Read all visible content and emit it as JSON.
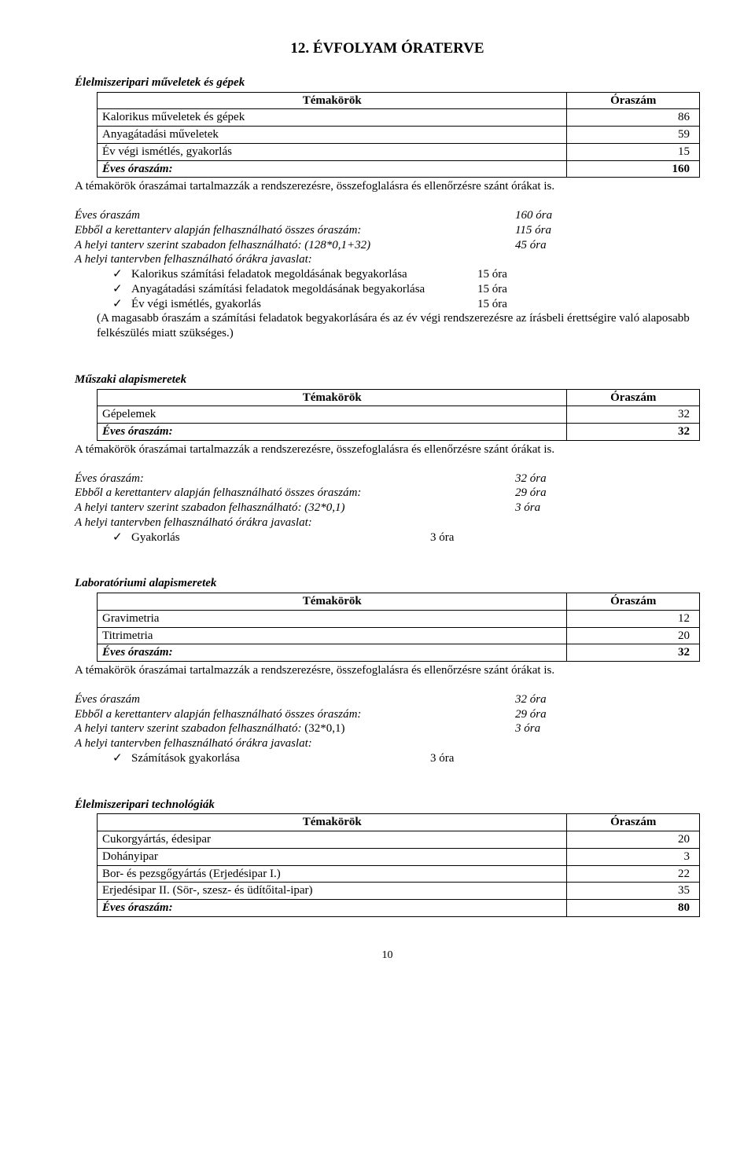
{
  "pageTitle": "12. ÉVFOLYAM ÓRATERVE",
  "common": {
    "topicHeader": "Témakörök",
    "hoursHeader": "Óraszám",
    "yearlyLabel": "Éves óraszám:",
    "noteLine": "A témakörök óraszámai tartalmazzák a rendszerezésre, összefoglalásra és ellenőrzésre szánt órákat is.",
    "yearlyHoursLabel": "Éves óraszám",
    "frameworkLabel": "Ebből a kerettanterv alapján felhasználható összes óraszám:",
    "freeLabelPrefix": "A helyi tanterv szerint szabadon felhasználható: ",
    "suggestionLabel": "A helyi tantervben felhasználható órákra javaslat:",
    "check": "✓"
  },
  "section1": {
    "title": "Élelmiszeripari műveletek és gépek",
    "rows": [
      {
        "topic": "Kalorikus műveletek és gépek",
        "hours": "86"
      },
      {
        "topic": "Anyagátadási műveletek",
        "hours": "59"
      },
      {
        "topic": "Év végi ismétlés, gyakorlás",
        "hours": "15"
      }
    ],
    "yearlyTotal": "160",
    "calc": {
      "yearly": "160 óra",
      "framework": "115 óra",
      "freeFormula": "(128*0,1+32)",
      "free": "45 óra",
      "bullets": [
        {
          "text": "Kalorikus számítási feladatok megoldásának begyakorlása",
          "hours": "15 óra"
        },
        {
          "text": "Anyagátadási számítási feladatok megoldásának begyakorlása",
          "hours": "15 óra"
        },
        {
          "text": "Év végi ismétlés, gyakorlás",
          "hours": "15 óra"
        }
      ],
      "paren": "(A magasabb óraszám a számítási feladatok begyakorlására és az év végi rendszerezésre az írásbeli érettségire való alaposabb felkészülés miatt szükséges.)"
    }
  },
  "section2": {
    "title": "Műszaki alapismeretek",
    "rows": [
      {
        "topic": "Gépelemek",
        "hours": "32"
      }
    ],
    "yearlyTotal": "32",
    "calc": {
      "yearlyLabel": "Éves óraszám:",
      "yearly": "32 óra",
      "framework": "29 óra",
      "freeFormula": "(32*0,1)",
      "free": "3 óra",
      "bullets": [
        {
          "text": "Gyakorlás",
          "hours": "3 óra"
        }
      ]
    }
  },
  "section3": {
    "title": "Laboratóriumi alapismeretek",
    "rows": [
      {
        "topic": "Gravimetria",
        "hours": "12"
      },
      {
        "topic": "Titrimetria",
        "hours": "20"
      }
    ],
    "yearlyTotal": "32",
    "calc": {
      "yearly": "32 óra",
      "framework": "29 óra",
      "freeFormula": "(32*0,1)",
      "free": "3 óra",
      "bullets": [
        {
          "text": "Számítások gyakorlása",
          "hours": "3 óra"
        }
      ]
    }
  },
  "section4": {
    "title": "Élelmiszeripari technológiák",
    "rows": [
      {
        "topic": "Cukorgyártás, édesipar",
        "hours": "20"
      },
      {
        "topic": "Dohányipar",
        "hours": "3"
      },
      {
        "topic": "Bor- és pezsgőgyártás (Erjedésipar I.)",
        "hours": "22"
      },
      {
        "topic": "Erjedésipar II. (Sör-, szesz- és üdítőital-ipar)",
        "hours": "35"
      }
    ],
    "yearlyTotal": "80"
  },
  "pageNumber": "10"
}
